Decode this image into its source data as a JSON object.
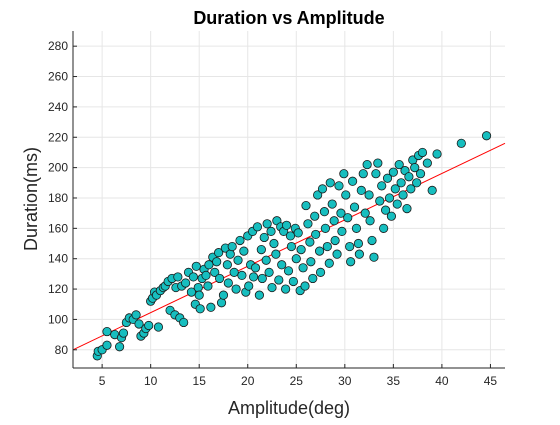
{
  "chart_data": {
    "type": "scatter",
    "title": "Duration vs Amplitude",
    "xlabel": "Amplitude(deg)",
    "ylabel": "Duration(ms)",
    "xlim": [
      2,
      46.5
    ],
    "ylim": [
      68,
      290
    ],
    "xticks": [
      5,
      10,
      15,
      20,
      25,
      30,
      35,
      40,
      45
    ],
    "yticks": [
      80,
      100,
      120,
      140,
      160,
      180,
      200,
      220,
      240,
      260,
      280
    ],
    "grid": true,
    "legend": "none",
    "colors": {
      "marker_fill": "#17BEBF",
      "marker_edge": "#1a1a1a",
      "fit_line": "#FF0000",
      "grid": "#e6e6e6",
      "axes": "#262626"
    },
    "fit_line": {
      "x": [
        2,
        46.5
      ],
      "y": [
        80,
        216
      ]
    },
    "series": [
      {
        "points": [
          [
            4.5,
            76
          ],
          [
            4.6,
            79
          ],
          [
            5.0,
            80
          ],
          [
            5.5,
            83
          ],
          [
            5.5,
            92
          ],
          [
            6.3,
            90
          ],
          [
            6.8,
            82
          ],
          [
            7.0,
            88
          ],
          [
            7.2,
            91
          ],
          [
            7.5,
            98
          ],
          [
            7.8,
            101
          ],
          [
            8.2,
            100
          ],
          [
            8.5,
            103
          ],
          [
            8.8,
            97
          ],
          [
            9.0,
            89
          ],
          [
            9.3,
            91
          ],
          [
            9.5,
            94
          ],
          [
            9.8,
            96
          ],
          [
            10.0,
            112
          ],
          [
            10.2,
            114
          ],
          [
            10.4,
            118
          ],
          [
            10.6,
            116
          ],
          [
            10.8,
            95
          ],
          [
            11.0,
            119
          ],
          [
            11.3,
            121
          ],
          [
            11.5,
            122
          ],
          [
            11.8,
            125
          ],
          [
            12.0,
            106
          ],
          [
            12.2,
            127
          ],
          [
            12.5,
            103
          ],
          [
            12.6,
            121
          ],
          [
            12.8,
            128
          ],
          [
            13.0,
            101
          ],
          [
            13.2,
            122
          ],
          [
            13.4,
            98
          ],
          [
            13.6,
            124
          ],
          [
            13.9,
            131
          ],
          [
            14.2,
            118
          ],
          [
            14.4,
            128
          ],
          [
            14.6,
            110
          ],
          [
            14.7,
            135
          ],
          [
            14.9,
            121
          ],
          [
            15.0,
            116
          ],
          [
            15.1,
            107
          ],
          [
            15.3,
            127
          ],
          [
            15.5,
            133
          ],
          [
            15.7,
            129
          ],
          [
            15.9,
            122
          ],
          [
            16.0,
            136
          ],
          [
            16.2,
            108
          ],
          [
            16.4,
            141
          ],
          [
            16.6,
            131
          ],
          [
            16.8,
            138
          ],
          [
            17.0,
            144
          ],
          [
            17.1,
            127
          ],
          [
            17.3,
            111
          ],
          [
            17.5,
            116
          ],
          [
            17.7,
            147
          ],
          [
            17.9,
            136
          ],
          [
            18.0,
            124
          ],
          [
            18.2,
            143
          ],
          [
            18.4,
            148
          ],
          [
            18.6,
            131
          ],
          [
            18.8,
            120
          ],
          [
            19.0,
            139
          ],
          [
            19.2,
            152
          ],
          [
            19.4,
            129
          ],
          [
            19.6,
            145
          ],
          [
            19.8,
            118
          ],
          [
            20.0,
            155
          ],
          [
            20.1,
            122
          ],
          [
            20.3,
            136
          ],
          [
            20.5,
            158
          ],
          [
            20.6,
            128
          ],
          [
            20.8,
            134
          ],
          [
            21.0,
            161
          ],
          [
            21.2,
            116
          ],
          [
            21.4,
            146
          ],
          [
            21.5,
            127
          ],
          [
            21.7,
            154
          ],
          [
            21.9,
            139
          ],
          [
            22.0,
            163
          ],
          [
            22.2,
            131
          ],
          [
            22.4,
            158
          ],
          [
            22.5,
            121
          ],
          [
            22.7,
            150
          ],
          [
            22.9,
            143
          ],
          [
            23.0,
            165
          ],
          [
            23.2,
            126
          ],
          [
            23.4,
            161
          ],
          [
            23.5,
            136
          ],
          [
            23.7,
            158
          ],
          [
            23.9,
            120
          ],
          [
            24.0,
            162
          ],
          [
            24.2,
            132
          ],
          [
            24.4,
            155
          ],
          [
            24.5,
            148
          ],
          [
            24.7,
            125
          ],
          [
            24.9,
            160
          ],
          [
            25.0,
            140
          ],
          [
            25.2,
            157
          ],
          [
            25.4,
            119
          ],
          [
            25.5,
            146
          ],
          [
            25.7,
            134
          ],
          [
            25.9,
            122
          ],
          [
            26.0,
            175
          ],
          [
            26.2,
            163
          ],
          [
            26.4,
            151
          ],
          [
            26.5,
            138
          ],
          [
            26.7,
            127
          ],
          [
            26.9,
            168
          ],
          [
            27.0,
            156
          ],
          [
            27.2,
            182
          ],
          [
            27.4,
            145
          ],
          [
            27.5,
            131
          ],
          [
            27.7,
            186
          ],
          [
            27.9,
            171
          ],
          [
            28.0,
            160
          ],
          [
            28.2,
            148
          ],
          [
            28.4,
            137
          ],
          [
            28.5,
            190
          ],
          [
            28.7,
            176
          ],
          [
            28.9,
            165
          ],
          [
            29.0,
            152
          ],
          [
            29.2,
            143
          ],
          [
            29.4,
            188
          ],
          [
            29.6,
            170
          ],
          [
            29.7,
            158
          ],
          [
            29.9,
            196
          ],
          [
            30.1,
            182
          ],
          [
            30.3,
            167
          ],
          [
            30.5,
            148
          ],
          [
            30.6,
            138
          ],
          [
            30.8,
            191
          ],
          [
            31.0,
            174
          ],
          [
            31.2,
            160
          ],
          [
            31.4,
            150
          ],
          [
            31.5,
            143
          ],
          [
            31.7,
            185
          ],
          [
            31.9,
            196
          ],
          [
            32.1,
            170
          ],
          [
            32.3,
            202
          ],
          [
            32.5,
            182
          ],
          [
            32.6,
            165
          ],
          [
            32.8,
            152
          ],
          [
            33.0,
            141
          ],
          [
            33.2,
            196
          ],
          [
            33.4,
            203
          ],
          [
            33.6,
            178
          ],
          [
            33.8,
            188
          ],
          [
            34.0,
            160
          ],
          [
            34.2,
            172
          ],
          [
            34.4,
            193
          ],
          [
            34.6,
            180
          ],
          [
            34.8,
            168
          ],
          [
            35.0,
            197
          ],
          [
            35.2,
            186
          ],
          [
            35.4,
            176
          ],
          [
            35.6,
            202
          ],
          [
            35.8,
            190
          ],
          [
            36.0,
            182
          ],
          [
            36.2,
            198
          ],
          [
            36.4,
            173
          ],
          [
            36.6,
            194
          ],
          [
            36.8,
            186
          ],
          [
            37.0,
            205
          ],
          [
            37.2,
            200
          ],
          [
            37.4,
            190
          ],
          [
            37.6,
            208
          ],
          [
            37.8,
            196
          ],
          [
            38.0,
            210
          ],
          [
            38.5,
            203
          ],
          [
            39.0,
            185
          ],
          [
            39.5,
            209
          ],
          [
            42.0,
            216
          ],
          [
            44.6,
            221
          ]
        ]
      }
    ]
  }
}
